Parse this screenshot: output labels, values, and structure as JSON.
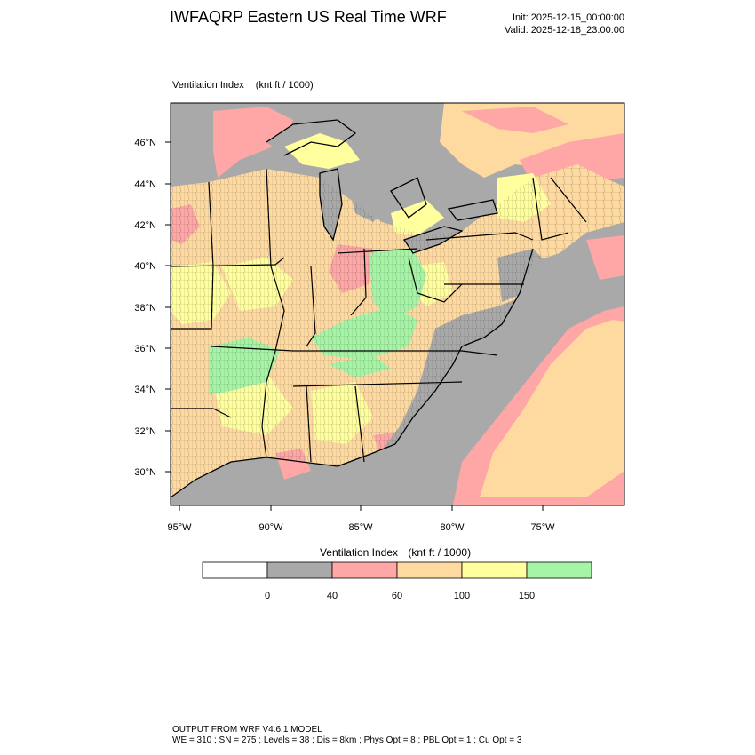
{
  "header": {
    "title": "IWFAQRP Eastern US Real Time WRF",
    "init": "Init: 2025-12-15_00:00:00",
    "valid": "Valid: 2025-12-18_23:00:00"
  },
  "map": {
    "field_label": "Ventilation Index",
    "units_label": "(knt ft / 1000)",
    "lat_labels": [
      "46°N",
      "44°N",
      "42°N",
      "40°N",
      "38°N",
      "36°N",
      "34°N",
      "32°N",
      "30°N"
    ],
    "lon_labels": [
      "95°W",
      "90°W",
      "85°W",
      "80°W",
      "75°W"
    ],
    "colors": {
      "land_gray": "#a9a9a9",
      "pink": "#ffa6a6",
      "orange": "#ffdaa0",
      "yellow": "#ffff9e",
      "green": "#a6f5a6",
      "water": "#a9a9a9"
    }
  },
  "colorbar": {
    "title": "Ventilation Index",
    "units": "(knt ft / 1000)",
    "boxes": [
      {
        "color": "#ffffff"
      },
      {
        "color": "#a9a9a9"
      },
      {
        "color": "#ffa6a6"
      },
      {
        "color": "#ffdaa0"
      },
      {
        "color": "#ffff9e"
      },
      {
        "color": "#a6f5a6"
      }
    ],
    "tick_labels": [
      "0",
      "40",
      "60",
      "100",
      "150"
    ]
  },
  "footer": {
    "line1": "OUTPUT FROM WRF V4.6.1 MODEL",
    "line2": "WE = 310 ; SN = 275 ; Levels = 38 ; Dis = 8km ; Phys Opt = 8 ; PBL Opt = 1 ; Cu Opt = 3"
  }
}
